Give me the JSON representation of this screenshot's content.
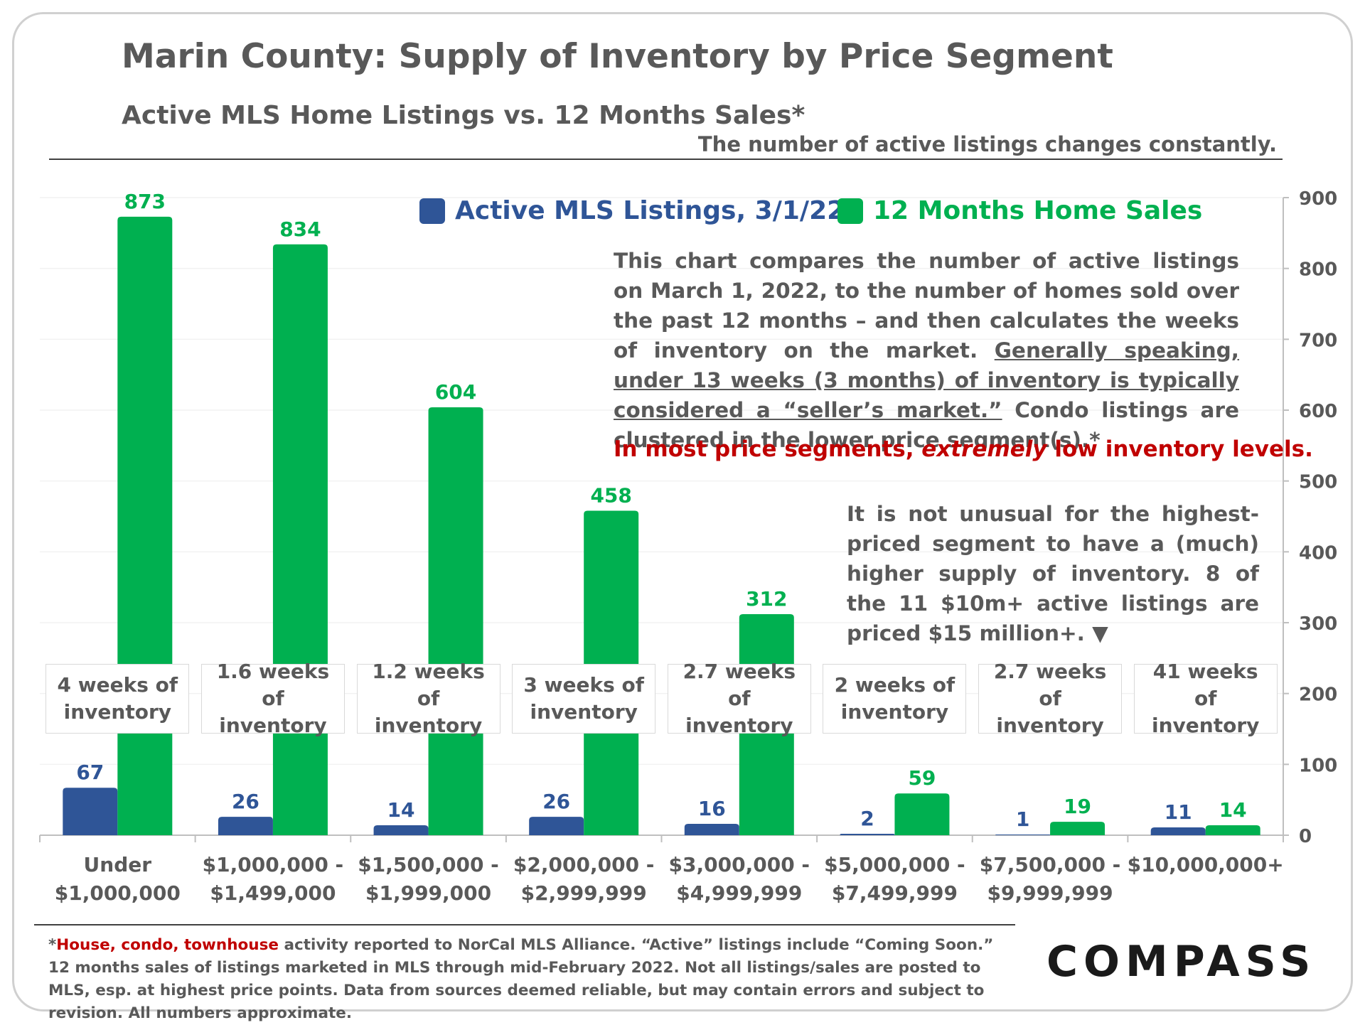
{
  "title": "Marin County: Supply of Inventory by Price Segment",
  "subtitle": "Active MLS Home Listings vs. 12 Months Sales*",
  "note_top": "The number of active listings changes constantly.",
  "legend": {
    "active_label": "Active MLS Listings, 3/1/22",
    "sales_label": "12 Months Home Sales",
    "active_color": "#2f5597",
    "sales_color": "#00b050"
  },
  "description": {
    "part1": "This chart compares the number of active listings on March 1, 2022, to the number of homes sold over the past 12 months – and then calculates the weeks of inventory on the market.",
    "underlined": "Generally speaking, under 13 weeks (3 months) of inventory is typically considered a “seller’s market.”",
    "part2": "Condo listings are clustered in the lower price segment(s).*"
  },
  "highlight": {
    "before": "In most price segments,",
    "italic": "extremely",
    "after": "low inventory levels."
  },
  "description2": "It is not unusual for the highest-priced segment to have a (much) higher supply of inventory. 8 of the 11 $10m+ active listings are priced $15 million+. ▼",
  "chart_data": {
    "type": "bar",
    "categories": [
      [
        "Under",
        "$1,000,000"
      ],
      [
        "$1,000,000 -",
        "$1,499,000"
      ],
      [
        "$1,500,000 -",
        "$1,999,000"
      ],
      [
        "$2,000,000 -",
        "$2,999,999"
      ],
      [
        "$3,000,000 -",
        "$4,999,999"
      ],
      [
        "$5,000,000 -",
        "$7,499,999"
      ],
      [
        "$7,500,000 -",
        "$9,999,999"
      ],
      [
        "$10,000,000+"
      ]
    ],
    "series": [
      {
        "name": "Active MLS Listings, 3/1/22",
        "color": "#2f5597",
        "values": [
          67,
          26,
          14,
          26,
          16,
          2,
          1,
          11
        ]
      },
      {
        "name": "12 Months Home Sales",
        "color": "#00b050",
        "values": [
          873,
          834,
          604,
          458,
          312,
          59,
          19,
          14
        ]
      }
    ],
    "weeks_labels": [
      [
        "4 weeks of",
        "inventory"
      ],
      [
        "1.6 weeks of",
        "inventory"
      ],
      [
        "1.2 weeks of",
        "inventory"
      ],
      [
        "3 weeks of",
        "inventory"
      ],
      [
        "2.7 weeks of",
        "inventory"
      ],
      [
        "2 weeks of",
        "inventory"
      ],
      [
        "2.7 weeks",
        "of inventory"
      ],
      [
        "41 weeks of",
        "inventory"
      ]
    ],
    "yaxis_position": "right",
    "ylim": [
      0,
      900
    ],
    "yticks": [
      0,
      100,
      200,
      300,
      400,
      500,
      600,
      700,
      800,
      900
    ],
    "grid": true,
    "legend_position": "top-center"
  },
  "footnote": {
    "star": "*",
    "red": "House, condo, townhouse",
    "rest": " activity reported to NorCal MLS Alliance. “Active” listings include “Coming Soon.” 12 months sales of listings marketed in MLS through mid-February 2022. Not all listings/sales are posted to MLS, esp. at highest price points. Data from sources deemed reliable, but may contain errors and subject to revision.  All numbers approximate."
  },
  "logo": "COMPASS"
}
